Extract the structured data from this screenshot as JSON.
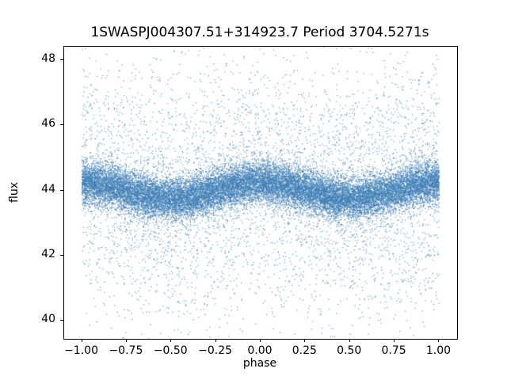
{
  "chart_data": {
    "type": "scatter",
    "title": "1SWASPJ004307.51+314923.7 Period 3704.5271s",
    "xlabel": "phase",
    "ylabel": "flux",
    "xlim": [
      -1.1,
      1.1
    ],
    "ylim": [
      39.44,
      48.42
    ],
    "x_ticks": [
      -1.0,
      -0.75,
      -0.5,
      -0.25,
      0.0,
      0.25,
      0.5,
      0.75,
      1.0
    ],
    "x_tick_labels": [
      "−1.00",
      "−0.75",
      "−0.50",
      "−0.25",
      "0.00",
      "0.25",
      "0.50",
      "0.75",
      "1.00"
    ],
    "y_ticks": [
      40,
      42,
      44,
      46,
      48
    ],
    "y_tick_labels": [
      "40",
      "42",
      "44",
      "46",
      "48"
    ],
    "grid": false,
    "legend": null,
    "marker_color": "#3d7eb5",
    "marker_alpha": 0.8,
    "series_model": {
      "description": "Phase-folded stellar light curve; dense core band: flux = mean_flux + amplitude*cos(2*pi*phase) + N(0, core_sigma); sparse halo of outliers with N(0, halo_sigma) spanning roughly flux 39.6 to 48.2 over phase -1.00 to 1.00",
      "mean_flux": 44.0,
      "amplitude": 0.25,
      "core_points": 22000,
      "core_sigma": 0.32,
      "halo_points": 5200,
      "halo_sigma": 2.0,
      "phase_min": -1.0,
      "phase_max": 1.0,
      "seed": 7
    }
  }
}
